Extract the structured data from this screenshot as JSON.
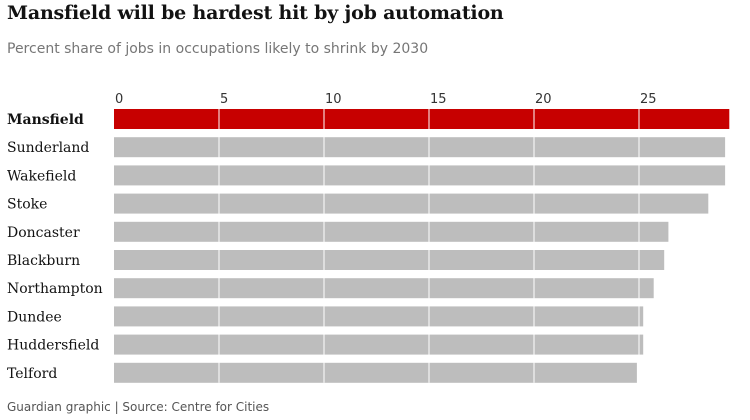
{
  "chart_data": {
    "type": "bar",
    "orientation": "horizontal",
    "title": "Mansfield will be hardest hit by job automation",
    "subtitle": "Percent share of jobs in occupations likely to shrink by 2030",
    "source": "Guardian graphic | Source: Centre for Cities",
    "categories": [
      "Mansfield",
      "Sunderland",
      "Wakefield",
      "Stoke",
      "Doncaster",
      "Blackburn",
      "Northampton",
      "Dundee",
      "Huddersfield",
      "Telford"
    ],
    "values": [
      29.3,
      29.1,
      29.1,
      28.3,
      26.4,
      26.2,
      25.7,
      25.2,
      25.2,
      24.9
    ],
    "highlight": "Mansfield",
    "highlight_color": "#c70000",
    "bar_color": "#bdbdbd",
    "gridline_color": "#ffffff",
    "xlim": [
      0,
      29.3
    ],
    "xticks": [
      "0",
      "5",
      "10",
      "15",
      "20",
      "25"
    ],
    "xtick_values": [
      0,
      5,
      10,
      15,
      20,
      25
    ],
    "xticks_position": "top",
    "grid": true
  }
}
